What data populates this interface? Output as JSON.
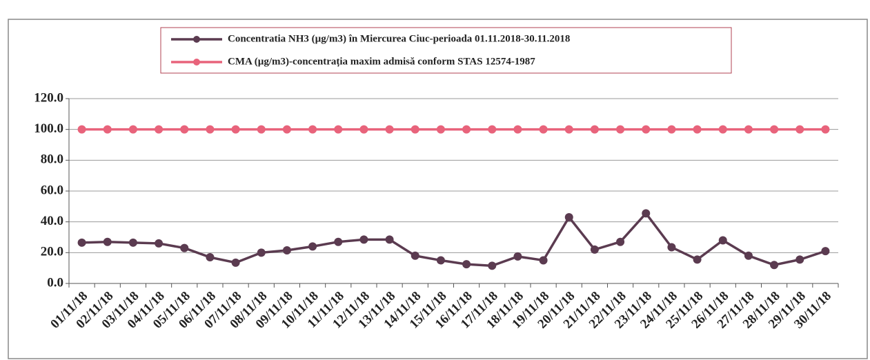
{
  "chart_data": {
    "type": "line",
    "categories": [
      "01/11/18",
      "02/11/18",
      "03/11/18",
      "04/11/18",
      "05/11/18",
      "06/11/18",
      "07/11/18",
      "08/11/18",
      "09/11/18",
      "10/11/18",
      "11/11/18",
      "12/11/18",
      "13/11/18",
      "14/11/18",
      "15/11/18",
      "16/11/18",
      "17/11/18",
      "18/11/18",
      "19/11/18",
      "20/11/18",
      "21/11/18",
      "22/11/18",
      "23/11/18",
      "24/11/18",
      "25/11/18",
      "26/11/18",
      "27/11/18",
      "28/11/18",
      "29/11/18",
      "30/11/18"
    ],
    "series": [
      {
        "name": "Concentratia NH3 (µg/m3) în Miercurea Ciuc-perioada 01.11.2018-30.11.2018",
        "color": "#5b3b50",
        "values": [
          26.5,
          27,
          26.5,
          26,
          23,
          17,
          13.5,
          20,
          21.5,
          24,
          27,
          28.5,
          28.5,
          18,
          15,
          12.5,
          11.5,
          17.5,
          15,
          43,
          22,
          27,
          45.5,
          23.5,
          15.5,
          28,
          18,
          12,
          15.5,
          21
        ]
      },
      {
        "name": "CMA (µg/m3)-concentrația maxim admisă conform STAS 12574-1987",
        "color": "#e8637b",
        "values": [
          100,
          100,
          100,
          100,
          100,
          100,
          100,
          100,
          100,
          100,
          100,
          100,
          100,
          100,
          100,
          100,
          100,
          100,
          100,
          100,
          100,
          100,
          100,
          100,
          100,
          100,
          100,
          100,
          100,
          100
        ]
      }
    ],
    "ylim": [
      0,
      120
    ],
    "yticks": [
      {
        "value": 0,
        "label": "0.0"
      },
      {
        "value": 20,
        "label": "20.0"
      },
      {
        "value": 40,
        "label": "40.0"
      },
      {
        "value": 60,
        "label": "60.0"
      },
      {
        "value": 80,
        "label": "80.0"
      },
      {
        "value": 100,
        "label": "100.0"
      },
      {
        "value": 120,
        "label": "120.0"
      }
    ],
    "grid": true
  }
}
